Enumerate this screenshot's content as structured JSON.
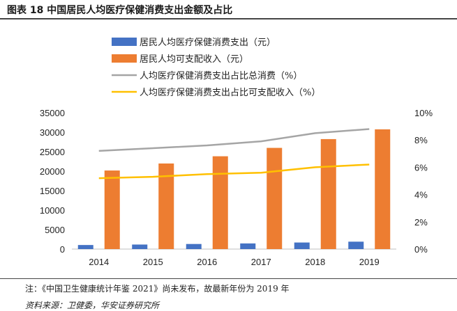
{
  "header": {
    "title": "图表 18 中国居民人均医疗保健消费支出金额及占比"
  },
  "footer": {
    "note": "注：《中国卫生健康统计年鉴 2021》尚未发布，故最新年份为 2019 年",
    "source": "资料来源：卫健委，华安证券研究所"
  },
  "chart_data": {
    "type": "bar",
    "title": "中国居民人均医疗保健消费支出金额及占比",
    "categories": [
      "2014",
      "2015",
      "2016",
      "2017",
      "2018",
      "2019"
    ],
    "series": [
      {
        "name": "居民人均医疗保健消费支出（元）",
        "kind": "bar",
        "axis": "left",
        "color": "#4472C4",
        "values": [
          1045,
          1165,
          1307,
          1451,
          1685,
          1902
        ]
      },
      {
        "name": "居民人均可支配收入（元）",
        "kind": "bar",
        "axis": "left",
        "color": "#ED7D31",
        "values": [
          20167,
          21966,
          23821,
          25974,
          28228,
          30733
        ]
      },
      {
        "name": "人均医疗保健消费支出占比总消费（%）",
        "kind": "line",
        "axis": "right",
        "color": "#A5A5A5",
        "values": [
          7.2,
          7.4,
          7.6,
          7.9,
          8.5,
          8.8
        ]
      },
      {
        "name": "人均医疗保健消费支出占比可支配收入（%）",
        "kind": "line",
        "axis": "right",
        "color": "#FFC000",
        "values": [
          5.2,
          5.3,
          5.5,
          5.6,
          6.0,
          6.2
        ]
      }
    ],
    "y_left": {
      "min": 0,
      "max": 35000,
      "ticks": [
        "0",
        "5000",
        "10000",
        "15000",
        "20000",
        "25000",
        "30000",
        "35000"
      ]
    },
    "y_right": {
      "min": 0,
      "max": 10,
      "ticks": [
        "0%",
        "2%",
        "4%",
        "6%",
        "8%",
        "10%"
      ]
    },
    "legend_position": "top-left",
    "grid": false
  }
}
